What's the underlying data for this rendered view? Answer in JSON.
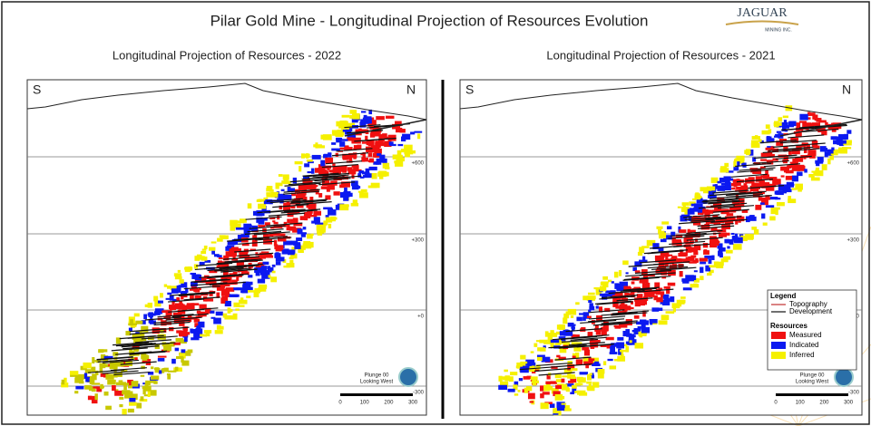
{
  "header": {
    "title": "Pilar Gold Mine - Longitudinal Projection of Resources Evolution",
    "logo": "JAGUAR",
    "logo_sub": "MINING INC."
  },
  "panels": [
    {
      "title": "Longitudinal Projection of Resources - 2022",
      "south": "S",
      "north": "N",
      "levels": [
        "+600",
        "+300",
        "+0",
        "-300"
      ],
      "plunge": "Plunge 00",
      "looking": "Looking West",
      "scale": [
        "0",
        "100",
        "200",
        "300"
      ]
    },
    {
      "title": "Longitudinal Projection of Resources - 2021",
      "south": "S",
      "north": "N",
      "levels": [
        "+600",
        "+300",
        "+0",
        "-300"
      ],
      "plunge": "Plunge 00",
      "looking": "Looking West",
      "scale": [
        "0",
        "100",
        "200",
        "300"
      ]
    }
  ],
  "legend": {
    "title": "Legend",
    "lines": [
      "Topography",
      "Development"
    ],
    "resources_title": "Resources",
    "resources": [
      "Measured",
      "Indicated",
      "Inferred"
    ]
  }
}
